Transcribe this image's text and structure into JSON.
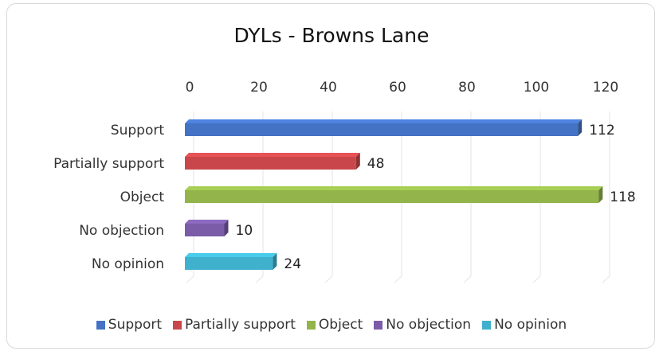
{
  "chart_data": {
    "type": "bar",
    "orientation": "horizontal",
    "title": "DYLs - Browns Lane",
    "categories": [
      "Support",
      "Partially support",
      "Object",
      "No objection",
      "No opinion"
    ],
    "values": [
      112,
      48,
      118,
      10,
      24
    ],
    "colors": [
      "#4472c4",
      "#c9474a",
      "#92b44a",
      "#7a5ca8",
      "#3fb1cc"
    ],
    "xlim": [
      0,
      120
    ],
    "xticks": [
      "0",
      "20",
      "40",
      "60",
      "80",
      "100",
      "120"
    ],
    "xaxis_position": "top",
    "grid": true,
    "legend": [
      "Support",
      "Partially support",
      "Object",
      "No objection",
      "No opinion"
    ],
    "legend_position": "bottom"
  }
}
